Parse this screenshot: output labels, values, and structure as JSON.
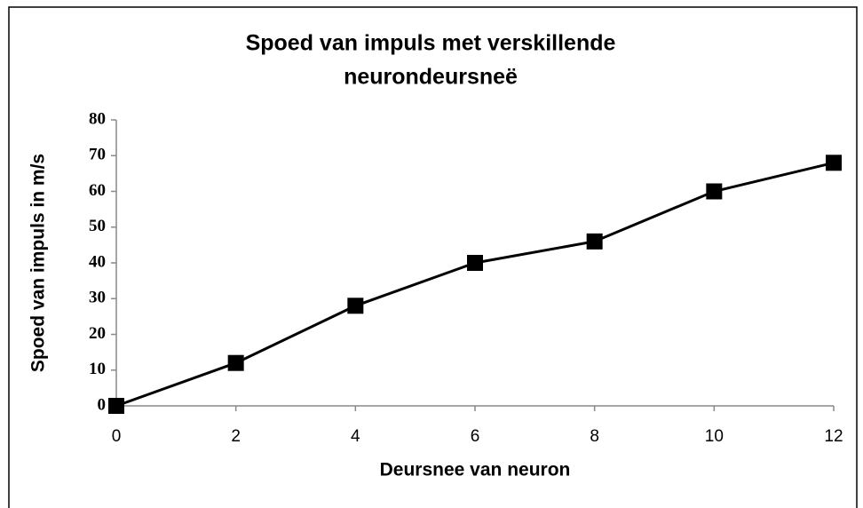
{
  "chart_data": {
    "type": "line",
    "title": [
      "Spoed van impuls met verskillende",
      "neurondeursneë"
    ],
    "x_label": "Deursnee van neuron",
    "y_label": "Spoed van impuls in m/s",
    "x": [
      0,
      2,
      4,
      6,
      8,
      10,
      12
    ],
    "series": [
      {
        "name": "Spoed",
        "color": "#000000",
        "values": [
          0,
          12,
          28,
          40,
          46,
          60,
          68
        ]
      }
    ],
    "xlim": [
      0,
      12
    ],
    "xticks": [
      0,
      2,
      4,
      6,
      8,
      10,
      12
    ],
    "ylim": [
      0,
      80
    ],
    "yticks": [
      0,
      10,
      20,
      30,
      40,
      50,
      60,
      70,
      80
    ],
    "grid": false
  }
}
